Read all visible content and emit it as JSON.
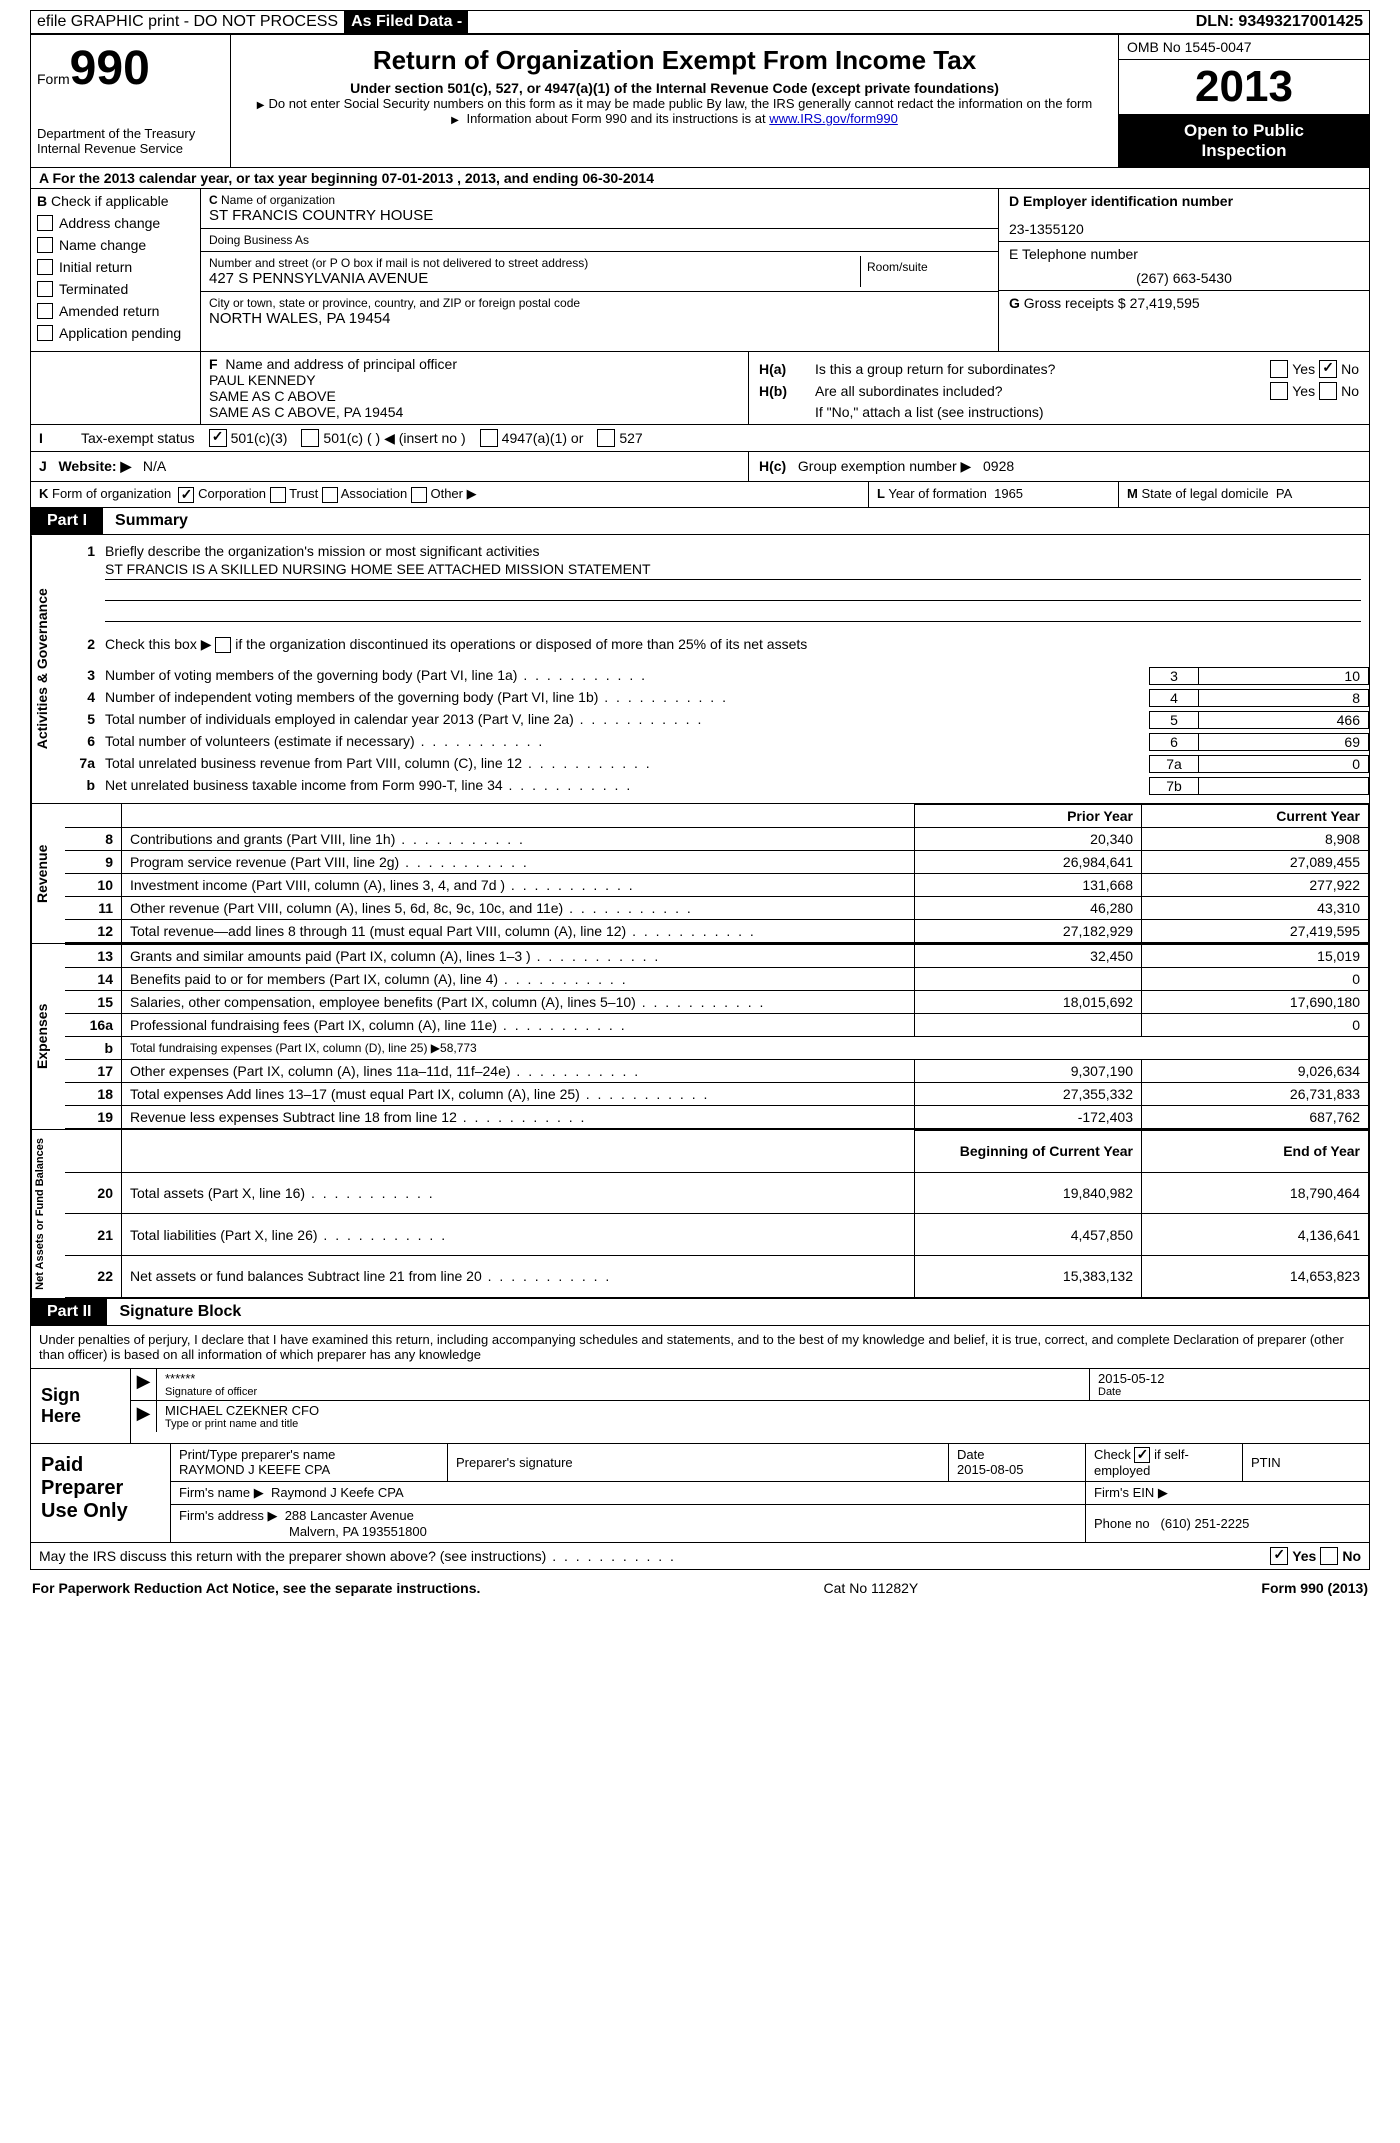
{
  "topbar": {
    "efile": "efile GRAPHIC print - DO NOT PROCESS",
    "asfiled": "As Filed Data -",
    "dln_label": "DLN:",
    "dln": "93493217001425"
  },
  "header": {
    "form_word": "Form",
    "form_num": "990",
    "dept": "Department of the Treasury",
    "irs": "Internal Revenue Service",
    "title": "Return of Organization Exempt From Income Tax",
    "sub": "Under section 501(c), 527, or 4947(a)(1) of the Internal Revenue Code (except private foundations)",
    "note1": "Do not enter Social Security numbers on this form as it may be made public  By law, the IRS generally cannot redact the information on the form",
    "note2_pre": "Information about Form 990 and its instructions is at ",
    "note2_link": "www.IRS.gov/form990",
    "omb": "OMB No  1545-0047",
    "year": "2013",
    "inspect1": "Open to Public",
    "inspect2": "Inspection"
  },
  "row_a": "A For the 2013 calendar year, or tax year beginning 07-01-2013    , 2013, and ending 06-30-2014",
  "section_b": {
    "b_label": "B",
    "b_text": "Check if applicable",
    "checks": [
      "Address change",
      "Name change",
      "Initial return",
      "Terminated",
      "Amended return",
      "Application pending"
    ],
    "c_label": "C",
    "name_lbl": "Name of organization",
    "name_val": "ST FRANCIS COUNTRY HOUSE",
    "dba_lbl": "Doing Business As",
    "dba_val": "",
    "street_lbl": "Number and street (or P O  box if mail is not delivered to street address)",
    "street_val": "427 S PENNSYLVANIA AVENUE",
    "room_lbl": "Room/suite",
    "city_lbl": "City or town, state or province, country, and ZIP or foreign postal code",
    "city_val": "NORTH WALES, PA  19454",
    "d_label": "D",
    "d_text": "Employer identification number",
    "ein": "23-1355120",
    "e_text": "E Telephone number",
    "phone": "(267) 663-5430",
    "g_label": "G",
    "g_text": "Gross receipts $",
    "gross": "27,419,595"
  },
  "officer": {
    "f_label": "F",
    "f_text": "Name and address of principal officer",
    "name": "PAUL KENNEDY",
    "addr1": "SAME AS C ABOVE",
    "addr2": "SAME AS C ABOVE, PA  19454"
  },
  "h_section": {
    "ha_label": "H(a)",
    "ha_text": "Is this a group return for subordinates?",
    "ha_yes": false,
    "ha_no": true,
    "hb_label": "H(b)",
    "hb_text": "Are all subordinates included?",
    "hb_yes": false,
    "hb_no": false,
    "hb_note": "If \"No,\" attach a list  (see instructions)",
    "hc_label": "H(c)",
    "hc_text": "Group exemption number ▶",
    "hc_val": "0928"
  },
  "row_i": {
    "lead": "I",
    "label": "Tax-exempt status",
    "opt1": "501(c)(3)",
    "opt1_checked": true,
    "opt2": "501(c) (    ) ◀ (insert no )",
    "opt3": "4947(a)(1) or",
    "opt4": "527"
  },
  "row_j": {
    "lead": "J",
    "label": "Website: ▶",
    "val": "N/A"
  },
  "row_k": {
    "lead": "K",
    "label": "Form of organization",
    "corp_checked": true,
    "opts": [
      "Corporation",
      "Trust",
      "Association",
      "Other ▶"
    ],
    "l_label": "L",
    "l_text": "Year of formation",
    "l_val": "1965",
    "m_label": "M",
    "m_text": "State of legal domicile",
    "m_val": "PA"
  },
  "part1": {
    "tag": "Part I",
    "title": "Summary"
  },
  "governance": {
    "vlabel": "Activities & Governance",
    "r1_num": "1",
    "r1_text": "Briefly describe the organization's mission or most significant activities",
    "r1_val": "ST  FRANCIS IS A SKILLED NURSING HOME  SEE ATTACHED MISSION STATEMENT",
    "r2_num": "2",
    "r2_text_a": "Check this box ▶",
    "r2_text_b": "if the organization discontinued its operations or disposed of more than 25% of its net assets",
    "rows": [
      {
        "n": "3",
        "desc": "Number of voting members of the governing body (Part VI, line 1a)",
        "box": "3",
        "val": "10"
      },
      {
        "n": "4",
        "desc": "Number of independent voting members of the governing body (Part VI, line 1b)",
        "box": "4",
        "val": "8"
      },
      {
        "n": "5",
        "desc": "Total number of individuals employed in calendar year 2013 (Part V, line 2a)",
        "box": "5",
        "val": "466"
      },
      {
        "n": "6",
        "desc": "Total number of volunteers (estimate if necessary)",
        "box": "6",
        "val": "69"
      },
      {
        "n": "7a",
        "desc": "Total unrelated business revenue from Part VIII, column (C), line 12",
        "box": "7a",
        "val": "0"
      },
      {
        "n": "b",
        "desc": "Net unrelated business taxable income from Form 990-T, line 34",
        "box": "7b",
        "val": ""
      }
    ]
  },
  "revenue": {
    "vlabel": "Revenue",
    "head_prior": "Prior Year",
    "head_curr": "Current Year",
    "rows": [
      {
        "n": "8",
        "desc": "Contributions and grants (Part VIII, line 1h)",
        "pv": "20,340",
        "cv": "8,908"
      },
      {
        "n": "9",
        "desc": "Program service revenue (Part VIII, line 2g)",
        "pv": "26,984,641",
        "cv": "27,089,455"
      },
      {
        "n": "10",
        "desc": "Investment income (Part VIII, column (A), lines 3, 4, and 7d )",
        "pv": "131,668",
        "cv": "277,922"
      },
      {
        "n": "11",
        "desc": "Other revenue (Part VIII, column (A), lines 5, 6d, 8c, 9c, 10c, and 11e)",
        "pv": "46,280",
        "cv": "43,310"
      },
      {
        "n": "12",
        "desc": "Total revenue—add lines 8 through 11 (must equal Part VIII, column (A), line 12)",
        "pv": "27,182,929",
        "cv": "27,419,595"
      }
    ]
  },
  "expenses": {
    "vlabel": "Expenses",
    "rows": [
      {
        "n": "13",
        "desc": "Grants and similar amounts paid (Part IX, column (A), lines 1–3 )",
        "pv": "32,450",
        "cv": "15,019"
      },
      {
        "n": "14",
        "desc": "Benefits paid to or for members (Part IX, column (A), line 4)",
        "pv": "",
        "cv": "0"
      },
      {
        "n": "15",
        "desc": "Salaries, other compensation, employee benefits (Part IX, column (A), lines 5–10)",
        "pv": "18,015,692",
        "cv": "17,690,180"
      },
      {
        "n": "16a",
        "desc": "Professional fundraising fees (Part IX, column (A), line 11e)",
        "pv": "",
        "cv": "0"
      },
      {
        "n": "b",
        "desc": "Total fundraising expenses (Part IX, column (D), line 25) ▶58,773",
        "pv": "",
        "cv": "",
        "nopv": true
      },
      {
        "n": "17",
        "desc": "Other expenses (Part IX, column (A), lines 11a–11d, 11f–24e)",
        "pv": "9,307,190",
        "cv": "9,026,634"
      },
      {
        "n": "18",
        "desc": "Total expenses  Add lines 13–17 (must equal Part IX, column (A), line 25)",
        "pv": "27,355,332",
        "cv": "26,731,833"
      },
      {
        "n": "19",
        "desc": "Revenue less expenses  Subtract line 18 from line 12",
        "pv": "-172,403",
        "cv": "687,762"
      }
    ]
  },
  "netassets": {
    "vlabel": "Net Assets or Fund Balances",
    "head_prior": "Beginning of Current Year",
    "head_curr": "End of Year",
    "rows": [
      {
        "n": "20",
        "desc": "Total assets (Part X, line 16)",
        "pv": "19,840,982",
        "cv": "18,790,464"
      },
      {
        "n": "21",
        "desc": "Total liabilities (Part X, line 26)",
        "pv": "4,457,850",
        "cv": "4,136,641"
      },
      {
        "n": "22",
        "desc": "Net assets or fund balances  Subtract line 21 from line 20",
        "pv": "15,383,132",
        "cv": "14,653,823"
      }
    ]
  },
  "part2": {
    "tag": "Part II",
    "title": "Signature Block"
  },
  "declare": "Under penalties of perjury, I declare that I have examined this return, including accompanying schedules and statements, and to the best of my knowledge and belief, it is true, correct, and complete  Declaration of preparer (other than officer) is based on all information of which preparer has any knowledge",
  "sign": {
    "side": "Sign Here",
    "sig_stars": "******",
    "sig_lbl": "Signature of officer",
    "date": "2015-05-12",
    "date_lbl": "Date",
    "name": "MICHAEL CZEKNER CFO",
    "name_lbl": "Type or print name and title"
  },
  "prep": {
    "side": "Paid Preparer Use Only",
    "r1c1_lbl": "Print/Type preparer's name",
    "r1c1_val": "RAYMOND J KEEFE CPA",
    "r1c2_lbl": "Preparer's signature",
    "r1c3_lbl": "Date",
    "r1c3_val": "2015-08-05",
    "r1c4_lbl_a": "Check",
    "r1c4_lbl_b": "if self-employed",
    "r1c4_checked": true,
    "r1c5_lbl": "PTIN",
    "r2c1_lbl": "Firm's name    ▶",
    "r2c1_val": "Raymond J Keefe CPA",
    "r2c2_lbl": "Firm's EIN ▶",
    "r3c1_lbl": "Firm's address ▶",
    "r3c1_val": "288 Lancaster Avenue",
    "r3c1_val2": "Malvern, PA  193551800",
    "r3c2_lbl": "Phone no",
    "r3c2_val": "(610) 251-2225"
  },
  "discuss": {
    "text": "May the IRS discuss this return with the preparer shown above? (see instructions)",
    "yes_checked": true
  },
  "footer": {
    "left": "For Paperwork Reduction Act Notice, see the separate instructions.",
    "mid": "Cat No  11282Y",
    "right": "Form 990 (2013)"
  },
  "colors": {
    "black": "#000000",
    "white": "#ffffff"
  }
}
